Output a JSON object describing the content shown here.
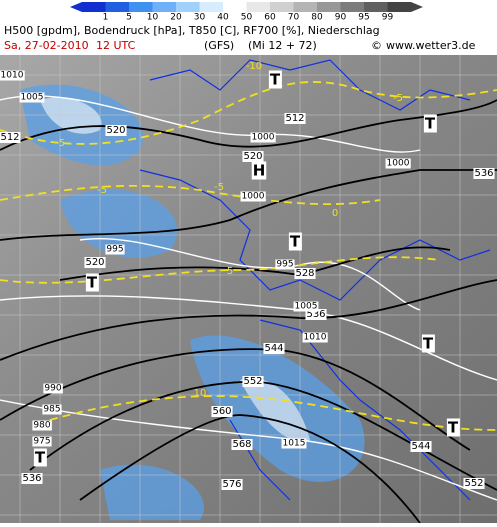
{
  "header": {
    "colorbar_labels": [
      "1",
      "5",
      "10",
      "20",
      "30",
      "40",
      "50",
      "60",
      "70",
      "80",
      "90",
      "95",
      "99"
    ],
    "title": "H500 [gpdm], Bodendruck [hPa], T850 [C], RF700 [%], Niederschlag",
    "date": "Sa, 27-02-2010",
    "time": "12 UTC",
    "model": "(GFS)",
    "run": "(Mi 12 + 72)",
    "copyright": "©",
    "site": "www.wetter3.de"
  },
  "map": {
    "centers": [
      "T",
      "T",
      "T",
      "T",
      "T",
      "T",
      "T",
      "H"
    ],
    "height_labels": [
      "520",
      "520",
      "512",
      "520",
      "528",
      "536",
      "544",
      "552",
      "560",
      "568",
      "576",
      "544",
      "552",
      "536",
      "512",
      "536"
    ],
    "pressure_labels": [
      "1005",
      "1000",
      "1000",
      "995",
      "995",
      "1005",
      "1010",
      "1000",
      "1015",
      "990",
      "985",
      "980",
      "975",
      "1010"
    ],
    "temperature_labels": [
      "-10",
      "-5",
      "-5",
      "-5",
      "0",
      "5",
      "10",
      "-5"
    ]
  }
}
